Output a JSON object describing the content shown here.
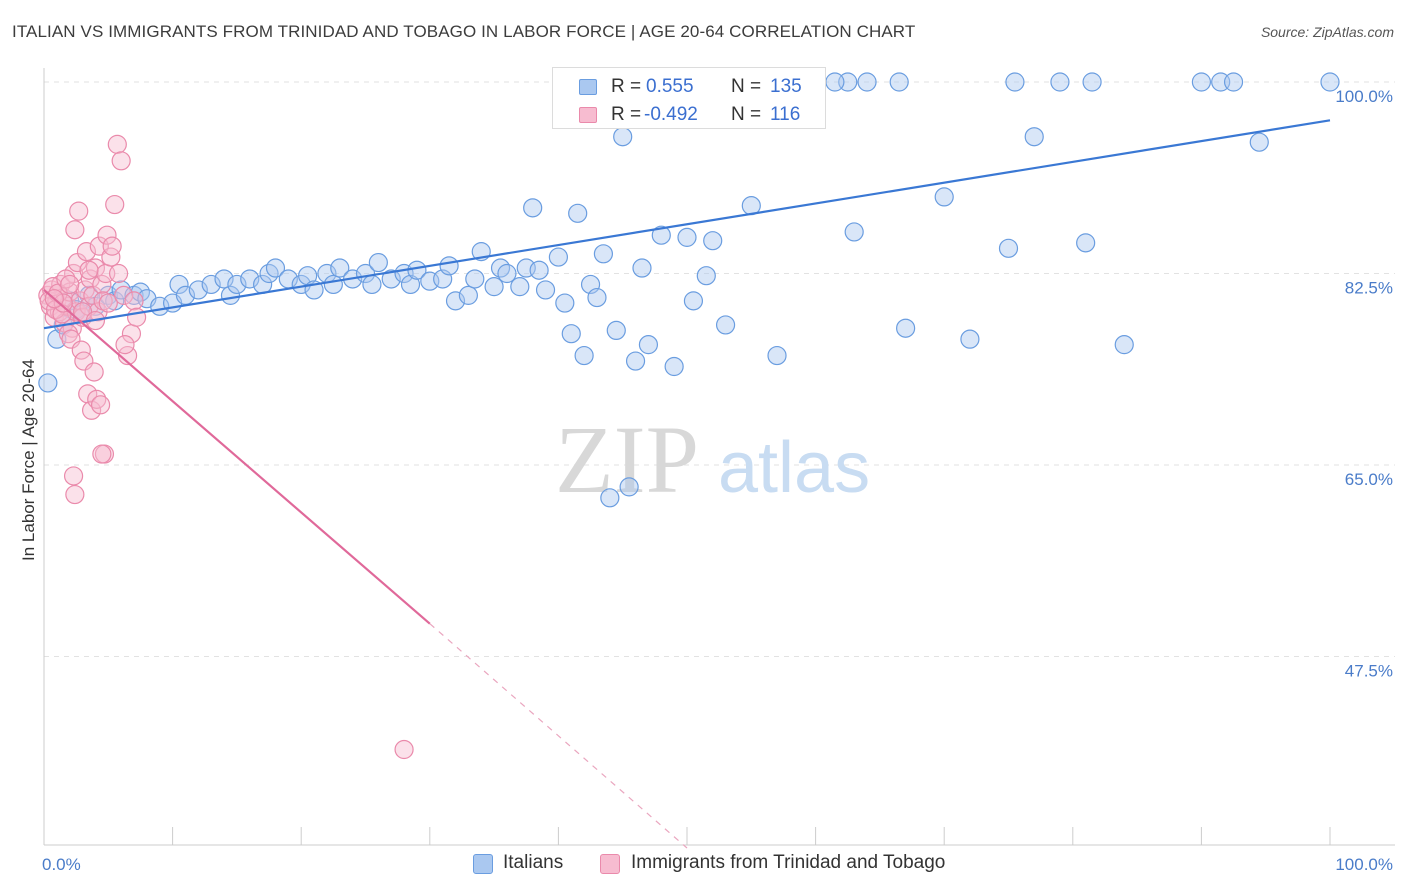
{
  "title": "ITALIAN VS IMMIGRANTS FROM TRINIDAD AND TOBAGO IN LABOR FORCE | AGE 20-64 CORRELATION CHART",
  "source": "Source: ZipAtlas.com",
  "watermark": {
    "zip": "ZIP",
    "atlas": "atlas"
  },
  "legend_top": {
    "rows": [
      {
        "r_label": "R =",
        "r_value": "0.555",
        "n_label": "N =",
        "n_value": "135",
        "color": "#aac8f0",
        "border": "#6a9de0"
      },
      {
        "r_label": "R =",
        "r_value": "-0.492",
        "n_label": "N =",
        "n_value": "116",
        "color": "#f7bcd0",
        "border": "#ea8aab"
      }
    ]
  },
  "legend_bottom": [
    {
      "label": "Italians",
      "color": "#aac8f0",
      "border": "#6a9de0"
    },
    {
      "label": "Immigrants from Trinidad and Tobago",
      "color": "#f7bcd0",
      "border": "#ea8aab"
    }
  ],
  "chart_data": {
    "type": "scatter",
    "title": "ITALIAN VS IMMIGRANTS FROM TRINIDAD AND TOBAGO IN LABOR FORCE | AGE 20-64 CORRELATION CHART",
    "xlabel": "",
    "ylabel": "In Labor Force | Age 20-64",
    "x_tick_labels": [
      "0.0%",
      "100.0%"
    ],
    "y_tick_labels": [
      "100.0%",
      "82.5%",
      "65.0%",
      "47.5%"
    ],
    "y_ticks": [
      100.0,
      82.5,
      65.0,
      47.5
    ],
    "xlim": [
      0,
      100
    ],
    "ylim": [
      29,
      101.5
    ],
    "grid": "horizontal dashed",
    "legend_position": "top-center",
    "series": [
      {
        "name": "Italians",
        "color": "#6a9de0",
        "fill": "#aac8f0",
        "trend": {
          "x": [
            0,
            100
          ],
          "y": [
            77.5,
            96.5
          ],
          "style": "solid"
        },
        "points": [
          [
            0.3,
            72.5
          ],
          [
            1.0,
            76.5
          ],
          [
            1.5,
            77.8
          ],
          [
            2.0,
            80.0
          ],
          [
            2.5,
            79.2
          ],
          [
            3.0,
            78.8
          ],
          [
            3.5,
            80.5
          ],
          [
            4.0,
            79.5
          ],
          [
            5.0,
            80.5
          ],
          [
            5.5,
            80.0
          ],
          [
            6.0,
            81.0
          ],
          [
            7.0,
            80.5
          ],
          [
            7.5,
            80.8
          ],
          [
            8.0,
            80.2
          ],
          [
            9.0,
            79.5
          ],
          [
            10.0,
            79.8
          ],
          [
            10.5,
            81.5
          ],
          [
            11.0,
            80.5
          ],
          [
            12.0,
            81.0
          ],
          [
            13.0,
            81.5
          ],
          [
            14.0,
            82.0
          ],
          [
            14.5,
            80.5
          ],
          [
            15.0,
            81.5
          ],
          [
            16.0,
            82.0
          ],
          [
            17.0,
            81.5
          ],
          [
            17.5,
            82.5
          ],
          [
            18.0,
            83.0
          ],
          [
            19.0,
            82.0
          ],
          [
            20.0,
            81.5
          ],
          [
            20.5,
            82.3
          ],
          [
            21.0,
            81.0
          ],
          [
            22.0,
            82.5
          ],
          [
            22.5,
            81.5
          ],
          [
            23.0,
            83.0
          ],
          [
            24.0,
            82.0
          ],
          [
            25.0,
            82.5
          ],
          [
            25.5,
            81.5
          ],
          [
            26.0,
            83.5
          ],
          [
            27.0,
            82.0
          ],
          [
            28.0,
            82.5
          ],
          [
            28.5,
            81.5
          ],
          [
            29.0,
            82.8
          ],
          [
            30.0,
            81.8
          ],
          [
            31.0,
            82.0
          ],
          [
            31.5,
            83.2
          ],
          [
            32.0,
            80.0
          ],
          [
            33.0,
            80.5
          ],
          [
            33.5,
            82.0
          ],
          [
            34.0,
            84.5
          ],
          [
            35.0,
            81.3
          ],
          [
            35.5,
            83.0
          ],
          [
            36.0,
            82.5
          ],
          [
            37.0,
            81.3
          ],
          [
            37.5,
            83.0
          ],
          [
            38.0,
            88.5
          ],
          [
            38.5,
            82.8
          ],
          [
            39.0,
            81.0
          ],
          [
            40.0,
            84.0
          ],
          [
            40.5,
            79.8
          ],
          [
            41.0,
            77.0
          ],
          [
            41.5,
            88.0
          ],
          [
            42.0,
            75.0
          ],
          [
            42.5,
            81.5
          ],
          [
            43.0,
            80.3
          ],
          [
            43.5,
            84.3
          ],
          [
            44.0,
            62.0
          ],
          [
            44.5,
            77.3
          ],
          [
            45.0,
            95.0
          ],
          [
            45.5,
            63.0
          ],
          [
            46.0,
            74.5
          ],
          [
            46.5,
            83.0
          ],
          [
            47.0,
            76.0
          ],
          [
            48.0,
            86.0
          ],
          [
            49.0,
            74.0
          ],
          [
            50.0,
            85.8
          ],
          [
            50.5,
            80.0
          ],
          [
            51.5,
            82.3
          ],
          [
            52.0,
            85.5
          ],
          [
            53.0,
            77.8
          ],
          [
            55.0,
            88.7
          ],
          [
            57.0,
            75.0
          ],
          [
            63.0,
            86.3
          ],
          [
            67.0,
            77.5
          ],
          [
            70.0,
            89.5
          ],
          [
            72.0,
            76.5
          ],
          [
            75.0,
            84.8
          ],
          [
            77.0,
            95.0
          ],
          [
            81.0,
            85.3
          ],
          [
            84.0,
            76.0
          ],
          [
            94.5,
            94.5
          ],
          [
            54.0,
            100.0
          ],
          [
            56.0,
            100.0
          ],
          [
            57.5,
            100.0
          ],
          [
            60.0,
            100.0
          ],
          [
            62.5,
            100.0
          ],
          [
            64.0,
            100.0
          ],
          [
            66.5,
            100.0
          ],
          [
            75.5,
            100.0
          ],
          [
            79.0,
            100.0
          ],
          [
            81.5,
            100.0
          ],
          [
            90.0,
            100.0
          ],
          [
            91.5,
            100.0
          ],
          [
            92.5,
            100.0
          ],
          [
            100.0,
            100.0
          ],
          [
            50.5,
            100.0
          ],
          [
            51.5,
            100.0
          ],
          [
            55.5,
            100.0
          ],
          [
            61.5,
            100.0
          ],
          [
            46.5,
            100.0
          ],
          [
            48.0,
            100.0
          ]
        ]
      },
      {
        "name": "Immigrants from Trinidad and Tobago",
        "color": "#ea8aab",
        "fill": "#f7bcd0",
        "trend": {
          "x": [
            0,
            30
          ],
          "y": [
            81.0,
            50.5
          ],
          "style": "solid"
        },
        "trend_extension": {
          "x": [
            30,
            50
          ],
          "y": [
            50.5,
            30.0
          ],
          "style": "dashed"
        },
        "points": [
          [
            0.3,
            80.5
          ],
          [
            0.5,
            79.5
          ],
          [
            0.6,
            81.0
          ],
          [
            0.8,
            78.5
          ],
          [
            1.0,
            80.0
          ],
          [
            1.2,
            79.0
          ],
          [
            1.3,
            81.5
          ],
          [
            1.5,
            80.3
          ],
          [
            1.6,
            78.0
          ],
          [
            1.8,
            79.5
          ],
          [
            2.0,
            80.8
          ],
          [
            2.2,
            77.5
          ],
          [
            2.3,
            82.5
          ],
          [
            2.5,
            79.0
          ],
          [
            2.6,
            83.5
          ],
          [
            2.8,
            80.0
          ],
          [
            3.0,
            78.5
          ],
          [
            3.2,
            81.0
          ],
          [
            3.3,
            84.5
          ],
          [
            3.5,
            79.5
          ],
          [
            3.6,
            82.0
          ],
          [
            3.8,
            80.5
          ],
          [
            4.0,
            83.0
          ],
          [
            4.2,
            79.0
          ],
          [
            4.3,
            85.0
          ],
          [
            4.5,
            81.5
          ],
          [
            4.6,
            80.0
          ],
          [
            4.8,
            82.5
          ],
          [
            5.0,
            79.8
          ],
          [
            5.2,
            84.0
          ],
          [
            0.4,
            80.0
          ],
          [
            0.7,
            81.3
          ],
          [
            0.9,
            79.2
          ],
          [
            1.1,
            80.7
          ],
          [
            1.4,
            78.8
          ],
          [
            1.7,
            82.0
          ],
          [
            1.9,
            77.0
          ],
          [
            2.1,
            76.5
          ],
          [
            2.4,
            86.5
          ],
          [
            2.7,
            88.2
          ],
          [
            2.9,
            75.5
          ],
          [
            3.1,
            74.5
          ],
          [
            3.4,
            71.5
          ],
          [
            3.7,
            70.0
          ],
          [
            3.9,
            73.5
          ],
          [
            4.1,
            71.0
          ],
          [
            4.4,
            70.5
          ],
          [
            4.7,
            66.0
          ],
          [
            4.9,
            86.0
          ],
          [
            5.3,
            85.0
          ],
          [
            5.5,
            88.8
          ],
          [
            5.7,
            94.3
          ],
          [
            6.0,
            92.8
          ],
          [
            6.2,
            80.5
          ],
          [
            6.5,
            75.0
          ],
          [
            6.8,
            77.0
          ],
          [
            7.0,
            80.0
          ],
          [
            7.2,
            78.5
          ],
          [
            2.3,
            64.0
          ],
          [
            2.4,
            62.3
          ],
          [
            4.5,
            66.0
          ],
          [
            28.0,
            39.0
          ],
          [
            5.8,
            82.5
          ],
          [
            6.3,
            76.0
          ],
          [
            3.0,
            79.0
          ],
          [
            2.0,
            81.5
          ],
          [
            1.5,
            79.8
          ],
          [
            0.8,
            80.2
          ],
          [
            3.5,
            82.8
          ],
          [
            4.0,
            78.2
          ]
        ]
      }
    ]
  }
}
